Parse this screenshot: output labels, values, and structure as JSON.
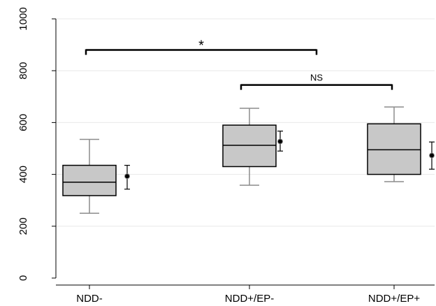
{
  "chart_data": {
    "type": "box",
    "title": "",
    "xlabel": "",
    "ylabel": "",
    "ylim": [
      0,
      1000
    ],
    "yticks": [
      0,
      200,
      400,
      600,
      800,
      1000
    ],
    "grid": true,
    "categories": [
      "NDD-",
      "NDD+/EP-",
      "NDD+/EP+"
    ],
    "boxes": [
      {
        "category": "NDD-",
        "whisker_low": 250,
        "q1": 318,
        "median": 370,
        "q3": 435,
        "whisker_high": 535,
        "mean": 393,
        "ci_low": 343,
        "ci_high": 435
      },
      {
        "category": "NDD+/EP-",
        "whisker_low": 358,
        "q1": 430,
        "median": 512,
        "q3": 590,
        "whisker_high": 655,
        "mean": 527,
        "ci_low": 490,
        "ci_high": 567
      },
      {
        "category": "NDD+/EP+",
        "whisker_low": 372,
        "q1": 400,
        "median": 495,
        "q3": 595,
        "whisker_high": 660,
        "mean": 473,
        "ci_low": 420,
        "ci_high": 525
      }
    ],
    "annotations": [
      {
        "from": "NDD-",
        "to": "NDD+/EP-",
        "y": 880,
        "label": "*"
      },
      {
        "from": "NDD+/EP-",
        "to": "NDD+/EP+",
        "y": 745,
        "label": "NS"
      }
    ],
    "colors": {
      "box_fill": "#c8c8c8",
      "whisker": "#8c8c8c",
      "outline": "#000000",
      "grid": "#e8e8e8"
    }
  }
}
